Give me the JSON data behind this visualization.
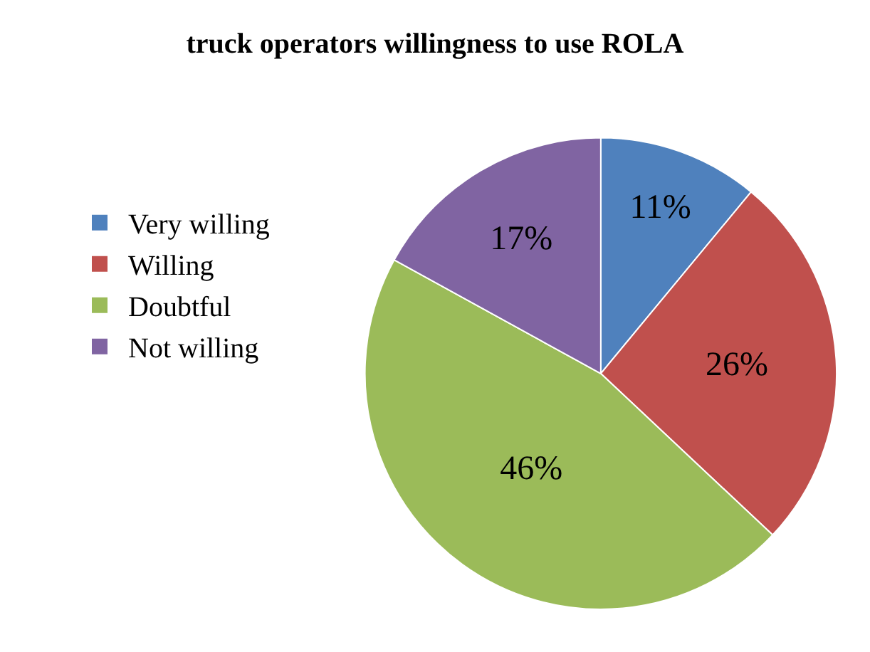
{
  "chart_data": {
    "type": "pie",
    "title": "truck operators willingness to use ROLA",
    "categories": [
      "Very willing",
      "Willing",
      "Doubtful",
      "Not willing"
    ],
    "values": [
      11,
      26,
      46,
      17
    ],
    "value_labels": [
      "11%",
      "26%",
      "46%",
      "17%"
    ],
    "colors": [
      "#4f81bd",
      "#c0504d",
      "#9bbb59",
      "#8064a2"
    ],
    "legend": "left"
  }
}
